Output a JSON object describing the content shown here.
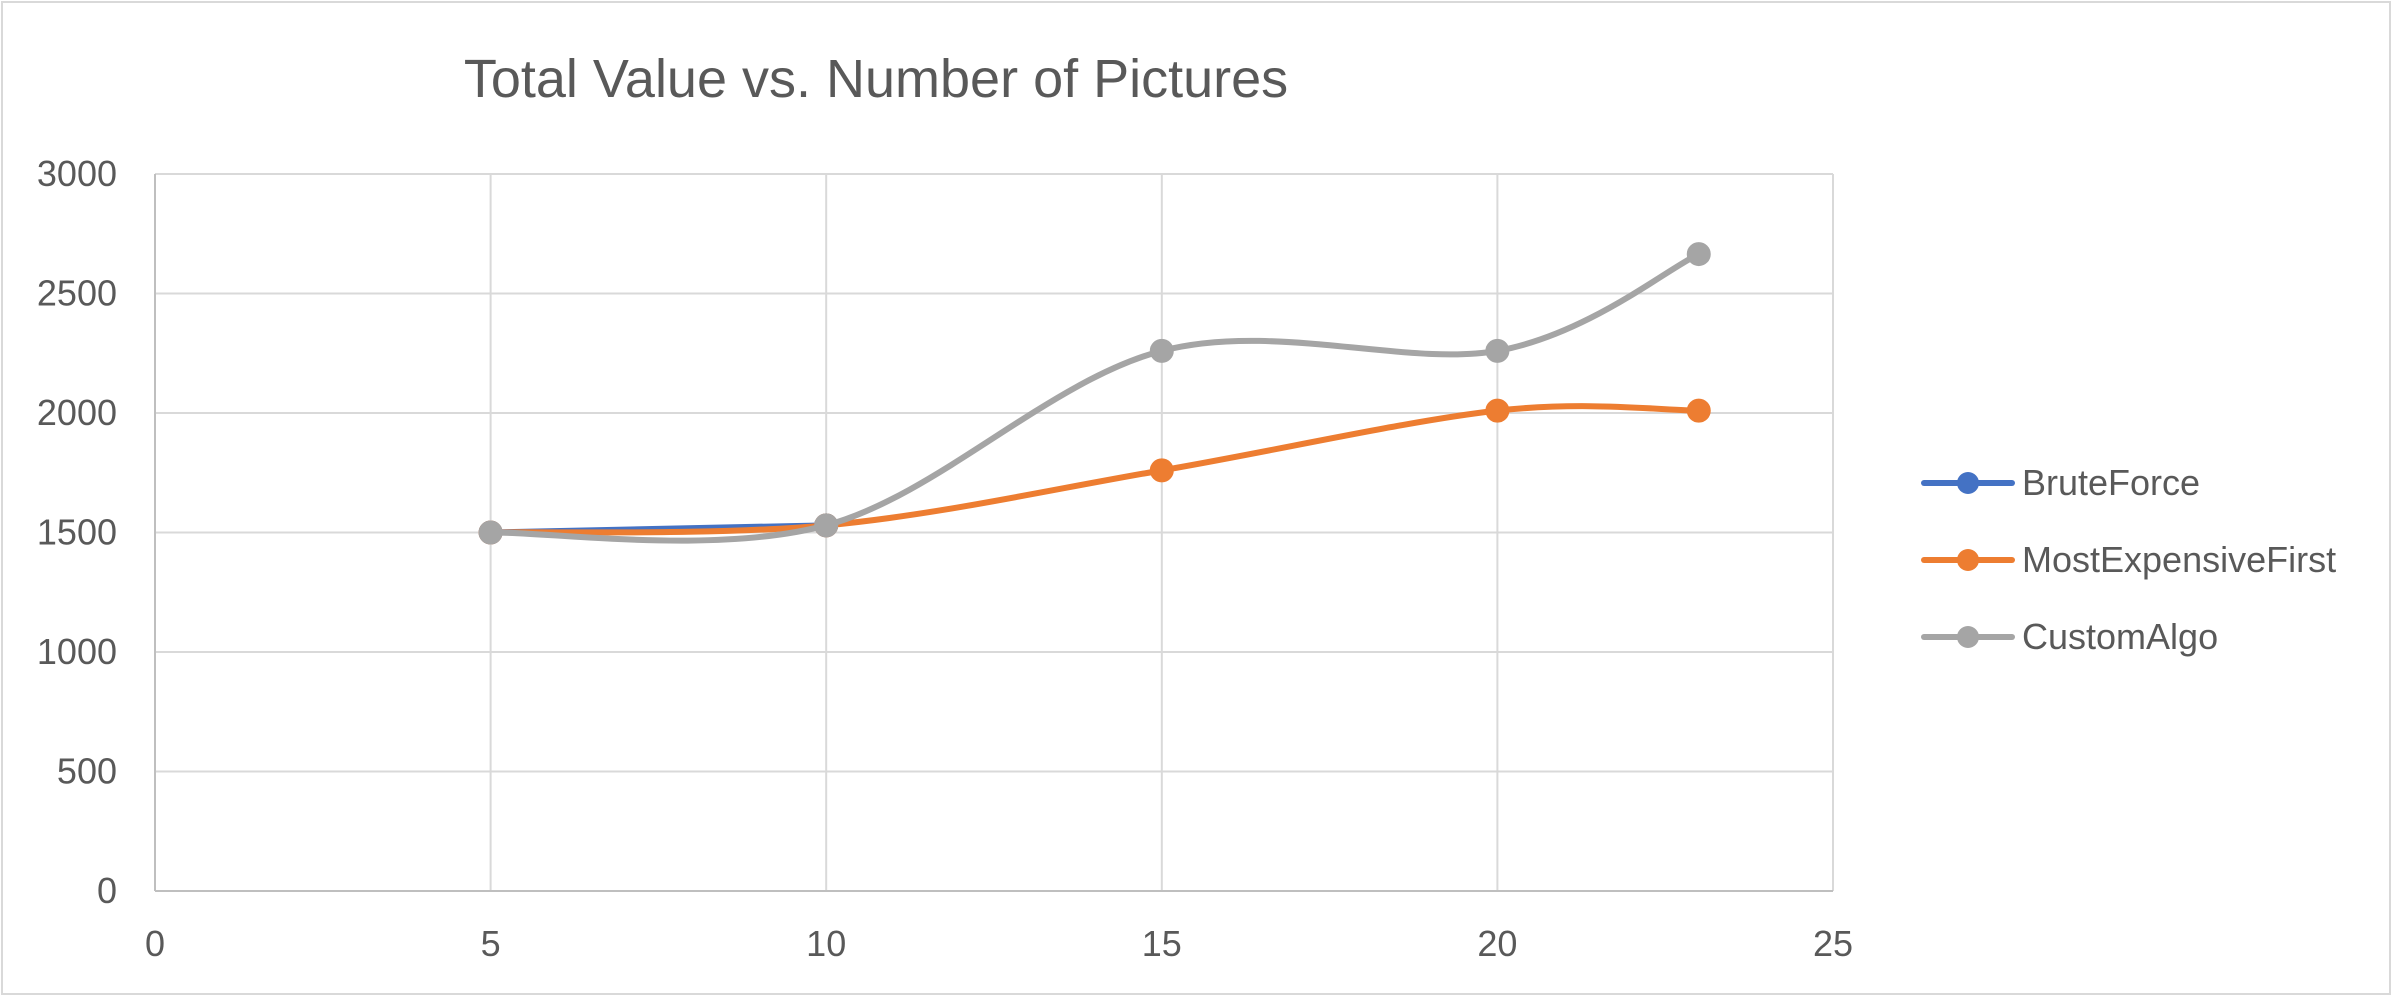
{
  "chart_data": {
    "type": "scatter",
    "title": "Total Value vs. Number of Pictures",
    "xlabel": "",
    "ylabel": "",
    "xlim": [
      0,
      25
    ],
    "ylim": [
      0,
      3000
    ],
    "x_ticks": [
      "0",
      "5",
      "10",
      "15",
      "20",
      "25"
    ],
    "y_ticks": [
      "0",
      "500",
      "1000",
      "1500",
      "2000",
      "2500",
      "3000"
    ],
    "grid": true,
    "smooth_lines": true,
    "legend_position": "right",
    "series": [
      {
        "name": "BruteForce",
        "color": "#4472C4",
        "points": [
          [
            5,
            1500
          ],
          [
            10,
            1530
          ]
        ]
      },
      {
        "name": "MostExpensiveFirst",
        "color": "#ED7D31",
        "points": [
          [
            5,
            1500
          ],
          [
            10,
            1530
          ],
          [
            15,
            1760
          ],
          [
            20,
            2010
          ],
          [
            23,
            2010
          ]
        ]
      },
      {
        "name": "CustomAlgo",
        "color": "#A5A5A5",
        "points": [
          [
            5,
            1500
          ],
          [
            10,
            1530
          ],
          [
            15,
            2260
          ],
          [
            20,
            2260
          ],
          [
            23,
            2665
          ]
        ]
      }
    ]
  }
}
